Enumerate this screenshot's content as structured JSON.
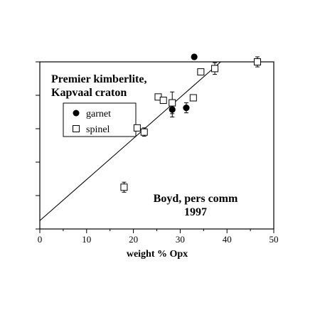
{
  "chart_data": {
    "type": "scatter",
    "title": "Premier kimberlite,",
    "subtitle": "Kapvaal craton",
    "xlabel": "weight % Opx",
    "ylabel": "",
    "xlim": [
      0,
      50
    ],
    "ylim": [
      0,
      10
    ],
    "x_ticks": [
      0,
      10,
      20,
      30,
      40,
      50
    ],
    "x_tick_labels": [
      "0",
      "10",
      "20",
      "30",
      "40",
      "50"
    ],
    "y_ticks": [
      0,
      2,
      4,
      6,
      8,
      10
    ],
    "grid": false,
    "legend": {
      "placement": "upper-left",
      "entries": [
        {
          "label": "garnet",
          "marker": "filled-circle"
        },
        {
          "label": "spinel",
          "marker": "open-square"
        }
      ]
    },
    "annotation": {
      "line1": "Boyd, pers comm",
      "line2": "1997"
    },
    "series": [
      {
        "name": "garnet",
        "marker": "filled-circle",
        "points": [
          {
            "x": 28.3,
            "y": 7.15,
            "err": 0.45
          },
          {
            "x": 31.3,
            "y": 7.25,
            "err": 0.3
          },
          {
            "x": 33.0,
            "y": 10.3,
            "err": 0
          }
        ]
      },
      {
        "name": "spinel",
        "marker": "open-square",
        "points": [
          {
            "x": 18.0,
            "y": 2.5,
            "err": 0.3
          },
          {
            "x": 20.8,
            "y": 6.05,
            "err": 0
          },
          {
            "x": 22.3,
            "y": 5.8,
            "err": 0.25
          },
          {
            "x": 25.3,
            "y": 7.9,
            "err": 0
          },
          {
            "x": 26.4,
            "y": 7.7,
            "err": 0
          },
          {
            "x": 28.3,
            "y": 7.55,
            "err": 0.65
          },
          {
            "x": 32.8,
            "y": 7.85,
            "err": 0
          },
          {
            "x": 34.4,
            "y": 9.4,
            "err": 0
          },
          {
            "x": 37.4,
            "y": 9.6,
            "err": 0.35
          },
          {
            "x": 46.5,
            "y": 10.0,
            "err": 0.3
          }
        ]
      }
    ],
    "fit_line": {
      "style": "solid",
      "x": [
        0,
        41.5
      ],
      "y": [
        0.5,
        10.7
      ]
    }
  }
}
